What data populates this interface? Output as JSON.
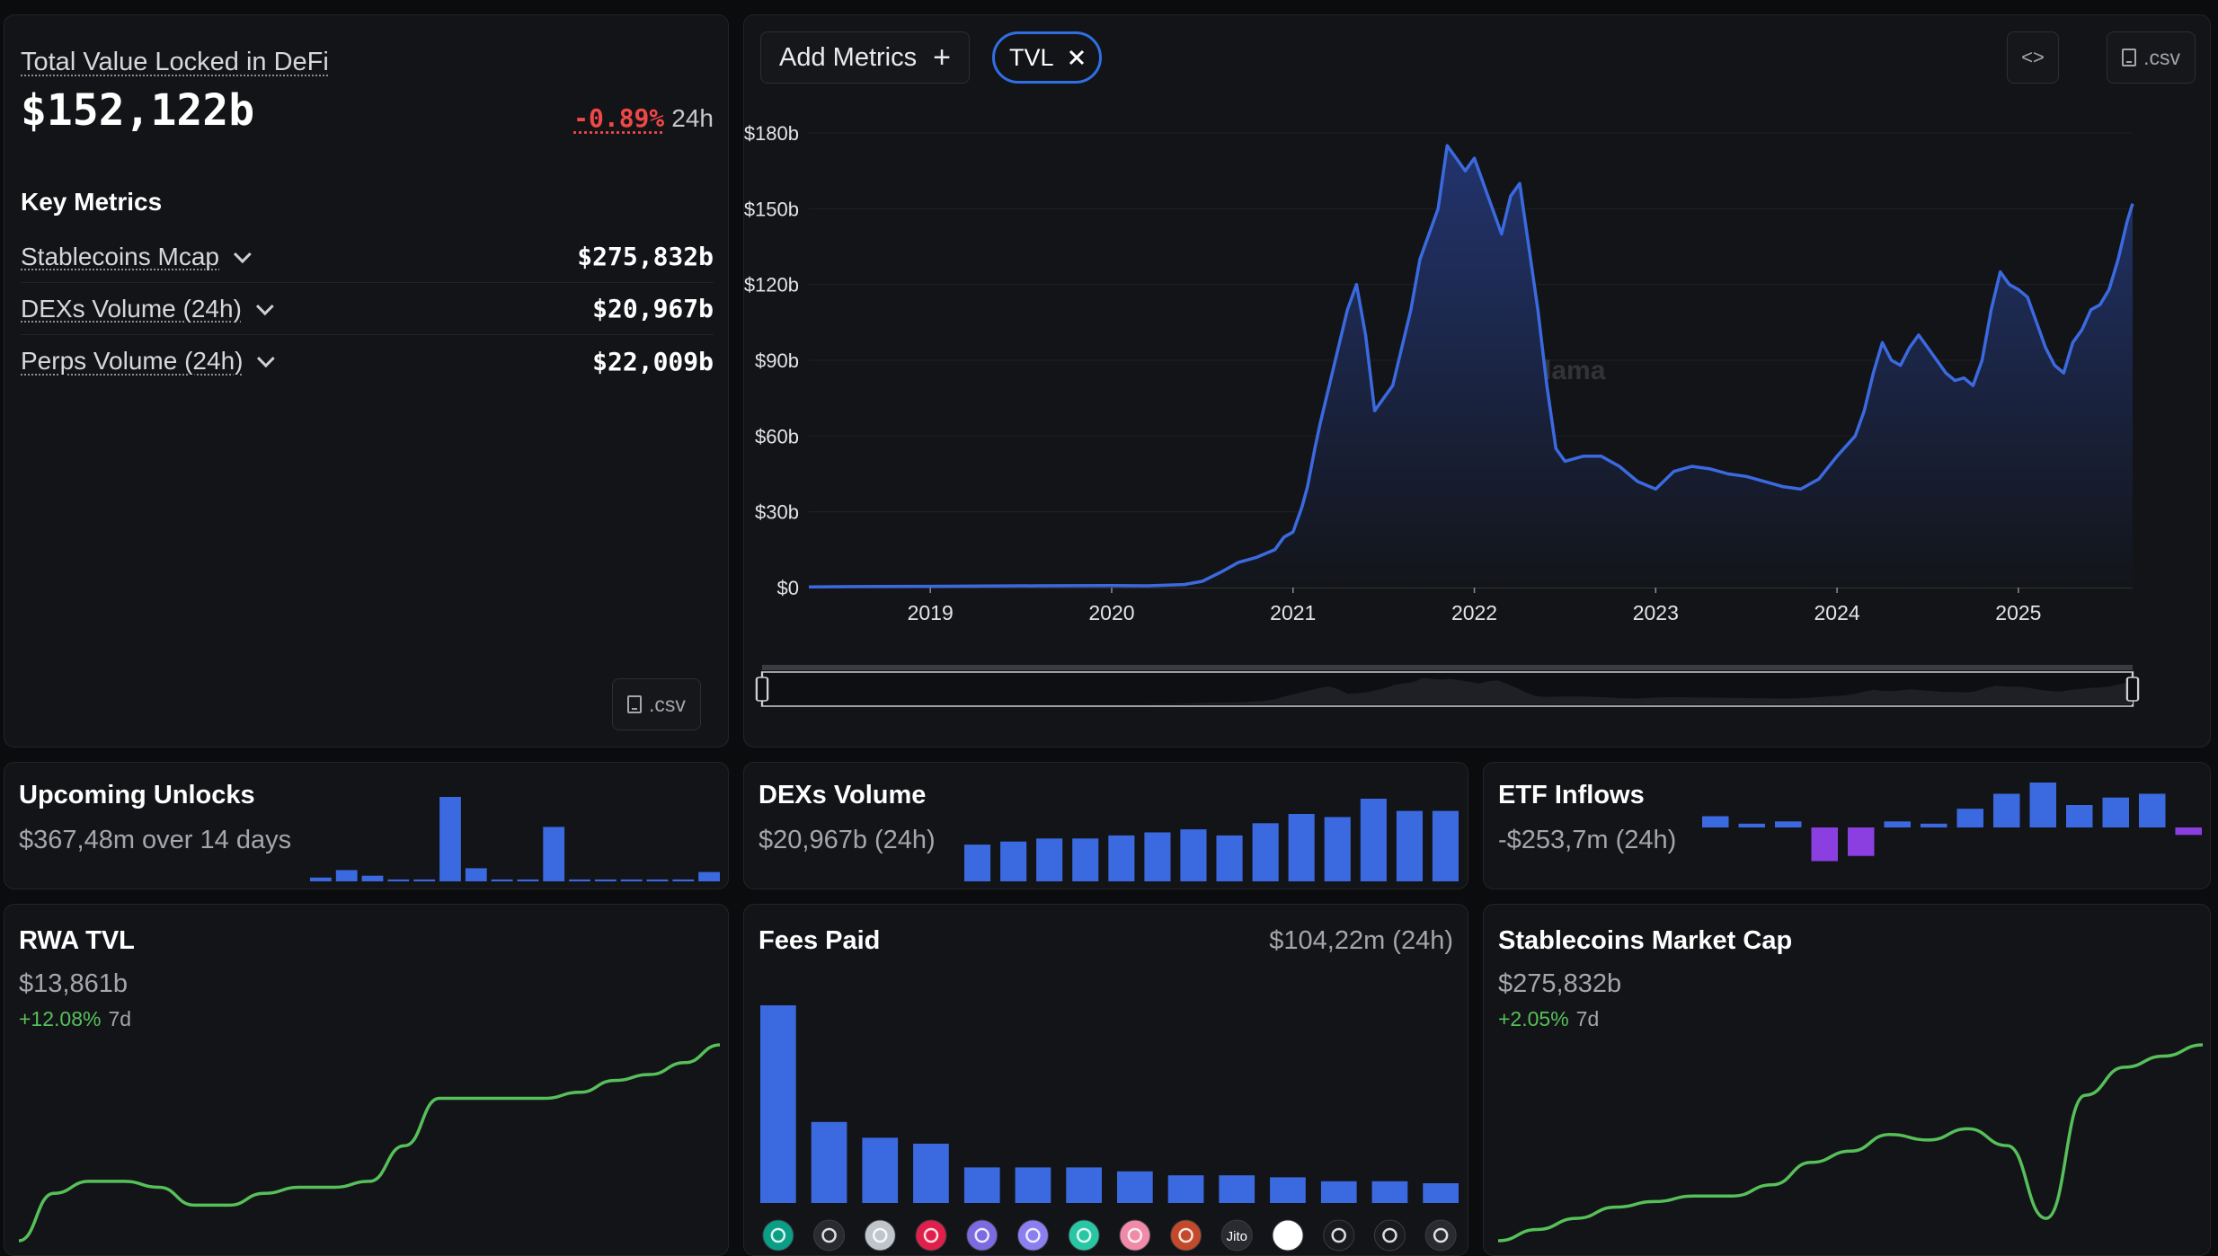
{
  "tvl_card": {
    "title": "Total Value Locked in DeFi",
    "value": "$152,122b",
    "change_pct": "-0.89%",
    "change_period": "24h",
    "key_metrics_title": "Key Metrics",
    "metrics": [
      {
        "label": "Stablecoins Mcap",
        "value": "$275,832b"
      },
      {
        "label": "DEXs Volume (24h)",
        "value": "$20,967b"
      },
      {
        "label": "Perps Volume (24h)",
        "value": "$22,009b"
      }
    ],
    "csv_label": ".csv"
  },
  "main_chart": {
    "add_metrics_label": "Add Metrics",
    "chip_label": "TVL",
    "embed_label": "<>",
    "csv_label": ".csv",
    "watermark": "DefiLlama",
    "colors": {
      "line": "#3b6ae0",
      "area_top": "#22346e",
      "area_bottom": "#13151a"
    }
  },
  "chart_data": [
    {
      "type": "area",
      "series": [
        {
          "values": [
            [
              2018.33,
              0.3
            ],
            [
              2018.6,
              0.4
            ],
            [
              2019.0,
              0.5
            ],
            [
              2019.3,
              0.6
            ],
            [
              2019.6,
              0.7
            ],
            [
              2020.0,
              0.8
            ],
            [
              2020.2,
              0.7
            ],
            [
              2020.4,
              1.2
            ],
            [
              2020.5,
              2.5
            ],
            [
              2020.6,
              6
            ],
            [
              2020.7,
              10
            ],
            [
              2020.8,
              12
            ],
            [
              2020.9,
              15
            ],
            [
              2020.95,
              20
            ],
            [
              2021.0,
              22
            ],
            [
              2021.05,
              32
            ],
            [
              2021.08,
              40
            ],
            [
              2021.12,
              55
            ],
            [
              2021.15,
              65
            ],
            [
              2021.2,
              80
            ],
            [
              2021.25,
              95
            ],
            [
              2021.3,
              110
            ],
            [
              2021.35,
              120
            ],
            [
              2021.4,
              100
            ],
            [
              2021.45,
              70
            ],
            [
              2021.5,
              75
            ],
            [
              2021.55,
              80
            ],
            [
              2021.6,
              95
            ],
            [
              2021.65,
              110
            ],
            [
              2021.7,
              130
            ],
            [
              2021.75,
              140
            ],
            [
              2021.8,
              150
            ],
            [
              2021.85,
              175
            ],
            [
              2021.9,
              170
            ],
            [
              2021.95,
              165
            ],
            [
              2022.0,
              170
            ],
            [
              2022.05,
              160
            ],
            [
              2022.1,
              150
            ],
            [
              2022.15,
              140
            ],
            [
              2022.2,
              155
            ],
            [
              2022.25,
              160
            ],
            [
              2022.3,
              135
            ],
            [
              2022.35,
              110
            ],
            [
              2022.4,
              80
            ],
            [
              2022.45,
              55
            ],
            [
              2022.5,
              50
            ],
            [
              2022.6,
              52
            ],
            [
              2022.7,
              52
            ],
            [
              2022.8,
              48
            ],
            [
              2022.9,
              42
            ],
            [
              2023.0,
              39
            ],
            [
              2023.1,
              46
            ],
            [
              2023.2,
              48
            ],
            [
              2023.3,
              47
            ],
            [
              2023.4,
              45
            ],
            [
              2023.5,
              44
            ],
            [
              2023.6,
              42
            ],
            [
              2023.7,
              40
            ],
            [
              2023.8,
              39
            ],
            [
              2023.9,
              43
            ],
            [
              2024.0,
              52
            ],
            [
              2024.1,
              60
            ],
            [
              2024.15,
              70
            ],
            [
              2024.2,
              85
            ],
            [
              2024.25,
              97
            ],
            [
              2024.3,
              90
            ],
            [
              2024.35,
              88
            ],
            [
              2024.4,
              95
            ],
            [
              2024.45,
              100
            ],
            [
              2024.5,
              95
            ],
            [
              2024.55,
              90
            ],
            [
              2024.6,
              85
            ],
            [
              2024.65,
              82
            ],
            [
              2024.7,
              83
            ],
            [
              2024.75,
              80
            ],
            [
              2024.8,
              90
            ],
            [
              2024.85,
              110
            ],
            [
              2024.9,
              125
            ],
            [
              2024.95,
              120
            ],
            [
              2025.0,
              118
            ],
            [
              2025.05,
              115
            ],
            [
              2025.1,
              105
            ],
            [
              2025.15,
              95
            ],
            [
              2025.2,
              88
            ],
            [
              2025.25,
              85
            ],
            [
              2025.3,
              97
            ],
            [
              2025.35,
              102
            ],
            [
              2025.4,
              110
            ],
            [
              2025.45,
              112
            ],
            [
              2025.5,
              118
            ],
            [
              2025.55,
              130
            ],
            [
              2025.6,
              145
            ],
            [
              2025.63,
              152
            ]
          ]
        }
      ],
      "xlim": [
        2018.33,
        2025.63
      ],
      "ylim": [
        0,
        180
      ],
      "yticks": [
        "$0",
        "$30b",
        "$60b",
        "$90b",
        "$120b",
        "$150b",
        "$180b"
      ],
      "xticks": [
        "2019",
        "2020",
        "2021",
        "2022",
        "2023",
        "2024",
        "2025"
      ],
      "grid": true
    },
    {
      "type": "bar",
      "values": [
        0.2,
        0.6,
        0.3,
        0.1,
        0.1,
        4.5,
        0.7,
        0.1,
        0.1,
        2.9,
        0.1,
        0.1,
        0.1,
        0.1,
        0.1,
        0.5
      ]
    },
    {
      "type": "bar",
      "values": [
        12,
        13,
        14,
        14,
        15,
        16,
        17,
        15,
        19,
        22,
        21,
        27,
        23,
        23
      ]
    },
    {
      "type": "bar",
      "values": [
        15,
        5,
        8,
        -45,
        -38,
        8,
        5,
        25,
        45,
        60,
        30,
        40,
        45,
        -10
      ]
    },
    {
      "type": "bar",
      "values": [
        100,
        41,
        33,
        30,
        18,
        18,
        18,
        16,
        14,
        14,
        13,
        11,
        11,
        10
      ]
    },
    {
      "type": "line",
      "values": [
        2,
        10,
        12,
        12,
        11,
        8,
        8,
        10,
        11,
        11,
        12,
        18,
        26,
        26,
        26,
        26,
        27,
        29,
        30,
        32,
        35
      ]
    },
    {
      "type": "line",
      "values": [
        2,
        4,
        6,
        8,
        9,
        10,
        10,
        12,
        16,
        18,
        21,
        20,
        22,
        19,
        6,
        28,
        33,
        35,
        37
      ]
    }
  ],
  "unlocks_card": {
    "title": "Upcoming Unlocks",
    "subtitle": "$367,48m over 14 days",
    "color": "#3b6ae0"
  },
  "dex_card": {
    "title": "DEXs Volume",
    "subtitle": "$20,967b (24h)",
    "color": "#3b6ae0"
  },
  "etf_card": {
    "title": "ETF Inflows",
    "subtitle": "-$253,7m (24h)",
    "color_pos": "#3b6ae0",
    "color_neg": "#8b3fe0"
  },
  "rwa_card": {
    "title": "RWA TVL",
    "value": "$13,861b",
    "change": "+12.08%",
    "period": "7d",
    "color": "#56c05a"
  },
  "fees_card": {
    "title": "Fees Paid",
    "value": "$104,22m (24h)",
    "color": "#3b6ae0",
    "icons": [
      "tether-icon",
      "circle-icon",
      "hyperliquid-icon",
      "pump-icon",
      "phantom-icon",
      "metamask-icon",
      "lido-icon",
      "uniswap-icon",
      "aave-icon",
      "jito-icon",
      "pancake-icon",
      "raydium-icon",
      "sky-icon",
      "hl-icon"
    ],
    "icon_colors": [
      "#0a9e87",
      "#2a2b30",
      "#c0c5cc",
      "#e0204a",
      "#7b6ae0",
      "#8a7ef0",
      "#29c6a4",
      "#f08aa8",
      "#c24a2a",
      "#2a2b30",
      "#ffffff",
      "#1a1b1f",
      "#1a1b1f",
      "#2a2b30"
    ],
    "jito_label": "Jito"
  },
  "stables_card": {
    "title": "Stablecoins Market Cap",
    "value": "$275,832b",
    "change": "+2.05%",
    "period": "7d",
    "color": "#56c05a"
  }
}
